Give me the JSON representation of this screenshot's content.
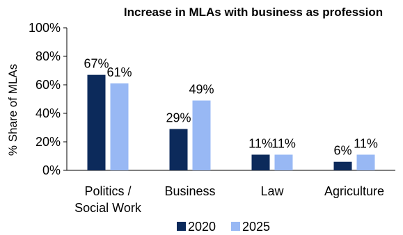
{
  "chart_data": {
    "type": "bar",
    "title": "Increase in MLAs with business as profession",
    "ylabel": "% Share of MLAs",
    "xlabel": "",
    "ylim": [
      0,
      100
    ],
    "yticks": [
      0,
      20,
      40,
      60,
      80,
      100
    ],
    "ytick_labels": [
      "0%",
      "20%",
      "40%",
      "60%",
      "80%",
      "100%"
    ],
    "categories": [
      [
        "Politics /",
        "Social Work"
      ],
      [
        "Business"
      ],
      [
        "Law"
      ],
      [
        "Agriculture"
      ]
    ],
    "series": [
      {
        "name": "2020",
        "color": "#0c2a5b",
        "values": [
          67,
          29,
          11,
          6
        ],
        "labels": [
          "67%",
          "29%",
          "11%",
          "6%"
        ]
      },
      {
        "name": "2025",
        "color": "#98b8f4",
        "values": [
          61,
          49,
          11,
          11
        ],
        "labels": [
          "61%",
          "49%",
          "11%",
          "11%"
        ]
      }
    ],
    "grid": false,
    "legend_position": "bottom"
  }
}
